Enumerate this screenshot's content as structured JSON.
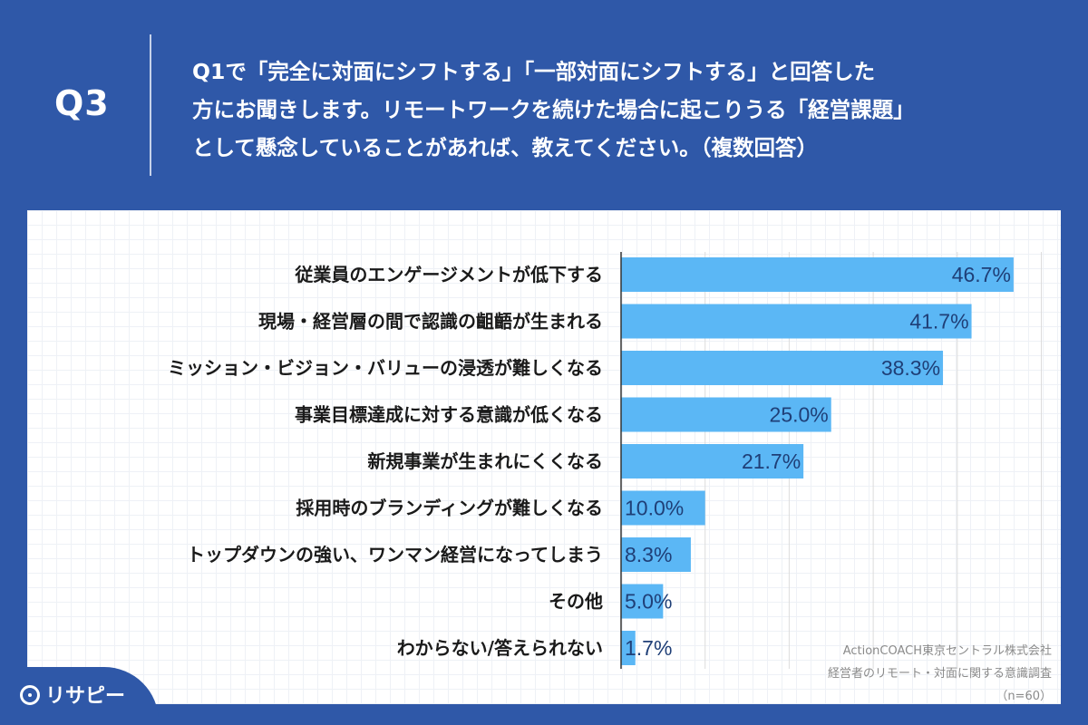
{
  "header": {
    "q_label": "Q3",
    "question_lines": [
      "Q1で「完全に対面にシフトする」「一部対面にシフトする」と回答した",
      "方にお聞きします。リモートワークを続けた場合に起こりうる「経営課題」",
      "として懸念していることがあれば、教えてください。（複数回答）"
    ]
  },
  "colors": {
    "background": "#2f58a8",
    "bar": "#5bb7f5",
    "value_text": "#1f3f77"
  },
  "chart_data": {
    "type": "bar",
    "orientation": "horizontal",
    "categories": [
      "従業員のエンゲージメントが低下する",
      "現場・経営層の間で認識の齟齬が生まれる",
      "ミッション・ビジョン・バリューの浸透が難しくなる",
      "事業目標達成に対する意識が低くなる",
      "新規事業が生まれにくくなる",
      "採用時のブランディングが難しくなる",
      "トップダウンの強い、ワンマン経営になってしまう",
      "その他",
      "わからない/答えられない"
    ],
    "values": [
      46.7,
      41.7,
      38.3,
      25.0,
      21.7,
      10.0,
      8.3,
      5.0,
      1.7
    ],
    "value_labels": [
      "46.7%",
      "41.7%",
      "38.3%",
      "25.0%",
      "21.7%",
      "10.0%",
      "8.3%",
      "5.0%",
      "1.7%"
    ],
    "xlim": [
      0,
      50
    ],
    "grid": true
  },
  "source": {
    "company": "ActionCOACH東京セントラル株式会社",
    "survey": "経営者のリモート・対面に関する意識調査",
    "sample": "（n=60）"
  },
  "logo": {
    "icon": "map-pin-icon",
    "text": "リサピー"
  }
}
